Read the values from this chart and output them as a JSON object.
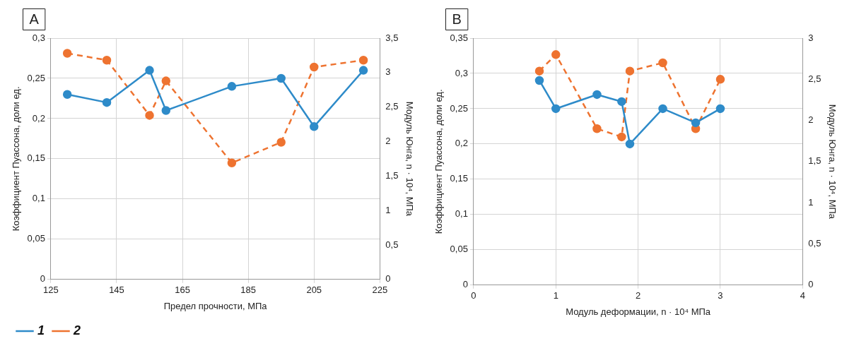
{
  "chart_data": [
    {
      "type": "line",
      "title": "A",
      "xlabel": "Предел прочности, МПа",
      "ylabel": "Коэффициент Пуассона, доли ед.",
      "y2label": "Модуль Юнга, n · 10⁴, МПа",
      "xlim": [
        125,
        225
      ],
      "xticks": [
        125,
        145,
        165,
        185,
        205,
        225
      ],
      "ylim": [
        0,
        0.3
      ],
      "yticks": [
        0,
        {
          "value": 0.05,
          "label": "0,05"
        },
        {
          "value": 0.1,
          "label": "0,1"
        },
        {
          "value": 0.15,
          "label": "0,15"
        },
        {
          "value": 0.2,
          "label": "0,2"
        },
        {
          "value": 0.25,
          "label": "0,25"
        },
        {
          "value": 0.3,
          "label": "0,3"
        }
      ],
      "y2lim": [
        0,
        3.5
      ],
      "y2ticks": [
        0,
        {
          "value": 0.5,
          "label": "0,5"
        },
        1,
        {
          "value": 1.5,
          "label": "1,5"
        },
        2,
        {
          "value": 2.5,
          "label": "2,5"
        },
        3,
        {
          "value": 3.5,
          "label": "3,5"
        }
      ],
      "grid": true,
      "legend": "bottom left",
      "marker": "circle",
      "series": [
        {
          "name": "1",
          "color": "#2e8bc9",
          "line_style": "solid",
          "x": [
            130,
            142,
            155,
            160,
            180,
            195,
            205,
            220
          ],
          "values": [
            0.23,
            0.22,
            0.26,
            0.21,
            0.24,
            0.25,
            0.19,
            0.26
          ]
        },
        {
          "name": "2",
          "color": "#ee7330",
          "line_style": "dashed",
          "axis": "y2",
          "x": [
            130,
            142,
            155,
            160,
            180,
            195,
            205,
            220
          ],
          "values": [
            3.28,
            3.18,
            2.38,
            2.88,
            1.69,
            1.99,
            3.08,
            3.18
          ]
        }
      ]
    },
    {
      "type": "line",
      "title": "B",
      "xlabel": "Модуль деформации, n · 10⁴ МПа",
      "ylabel": "Коэффициент Пуассона, доли ед.",
      "y2label": "Модуль Юнга, n · 10⁴, МПа",
      "xlim": [
        0,
        4
      ],
      "xticks": [
        0,
        1,
        2,
        3,
        4
      ],
      "ylim": [
        0,
        0.35
      ],
      "yticks": [
        0,
        {
          "value": 0.05,
          "label": "0,05"
        },
        {
          "value": 0.1,
          "label": "0,1"
        },
        {
          "value": 0.15,
          "label": "0,15"
        },
        {
          "value": 0.2,
          "label": "0,2"
        },
        {
          "value": 0.25,
          "label": "0,25"
        },
        {
          "value": 0.3,
          "label": "0,3"
        },
        {
          "value": 0.35,
          "label": "0,35"
        }
      ],
      "y2lim": [
        0,
        3
      ],
      "y2ticks": [
        0,
        {
          "value": 0.5,
          "label": "0,5"
        },
        1,
        {
          "value": 1.5,
          "label": "1,5"
        },
        2,
        {
          "value": 2.5,
          "label": "2,5"
        },
        3
      ],
      "grid": true,
      "marker": "circle",
      "series": [
        {
          "color": "#2e8bc9",
          "line_style": "solid",
          "x": [
            0.8,
            1.0,
            1.5,
            1.8,
            1.9,
            2.3,
            2.7,
            3.0
          ],
          "values": [
            0.29,
            0.25,
            0.27,
            0.26,
            0.2,
            0.25,
            0.23,
            0.25
          ]
        },
        {
          "color": "#ee7330",
          "line_style": "dashed",
          "axis": "y2",
          "x": [
            0.8,
            1.0,
            1.5,
            1.8,
            1.9,
            2.3,
            2.7,
            3.0
          ],
          "values": [
            2.6,
            2.8,
            1.9,
            1.8,
            2.6,
            2.7,
            1.9,
            2.5
          ]
        }
      ]
    }
  ]
}
